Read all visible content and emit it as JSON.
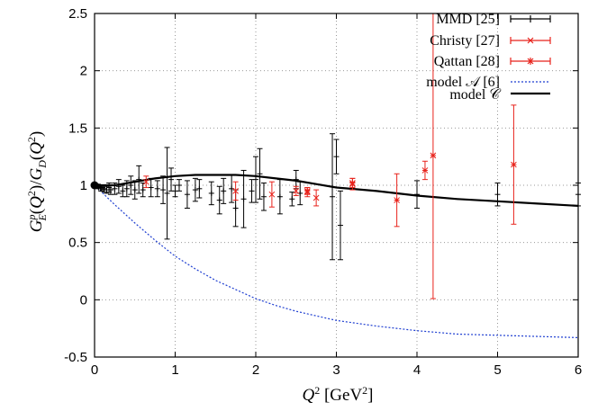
{
  "chart_data": {
    "type": "scatter",
    "xlabel": "Q² [GeV²]",
    "ylabel": "G_E^p(Q²)/G_D(Q²)",
    "xlim": [
      0,
      6
    ],
    "ylim": [
      -0.5,
      2.5
    ],
    "xticks": [
      "0",
      "1",
      "2",
      "3",
      "4",
      "5",
      "6"
    ],
    "yticks": [
      "-0.5",
      "0",
      "0.5",
      "1",
      "1.5",
      "2",
      "2.5"
    ],
    "xtick_values": [
      0,
      1,
      2,
      3,
      4,
      5,
      6
    ],
    "ytick_values": [
      -0.5,
      0,
      0.5,
      1,
      1.5,
      2,
      2.5
    ],
    "grid": true,
    "legend_position": "top-right",
    "colors": {
      "mmd": "#000000",
      "christy": "#e8221b",
      "qattan": "#e8221b",
      "modelA": "#1f3fd1",
      "modelC": "#000000"
    },
    "series": [
      {
        "name": "MMD [25]",
        "kind": "points",
        "marker": "plus",
        "points": [
          [
            0.01,
            1.0,
            0.01
          ],
          [
            0.02,
            0.99,
            0.01
          ],
          [
            0.03,
            1.0,
            0.01
          ],
          [
            0.04,
            0.99,
            0.01
          ],
          [
            0.05,
            0.98,
            0.01
          ],
          [
            0.07,
            0.99,
            0.01
          ],
          [
            0.08,
            0.97,
            0.02
          ],
          [
            0.1,
            0.98,
            0.02
          ],
          [
            0.12,
            0.97,
            0.03
          ],
          [
            0.15,
            0.96,
            0.03
          ],
          [
            0.18,
            0.98,
            0.04
          ],
          [
            0.2,
            0.96,
            0.04
          ],
          [
            0.25,
            0.97,
            0.05
          ],
          [
            0.3,
            0.99,
            0.06
          ],
          [
            0.35,
            0.95,
            0.05
          ],
          [
            0.4,
            0.97,
            0.07
          ],
          [
            0.45,
            1.0,
            0.08
          ],
          [
            0.5,
            0.96,
            0.08
          ],
          [
            0.55,
            1.05,
            0.12
          ],
          [
            0.6,
            0.96,
            0.06
          ],
          [
            0.7,
            0.98,
            0.08
          ],
          [
            0.78,
            0.97,
            0.07
          ],
          [
            0.85,
            0.96,
            0.12
          ],
          [
            0.9,
            0.93,
            0.4
          ],
          [
            0.95,
            1.05,
            0.1
          ],
          [
            1.0,
            0.95,
            0.05
          ],
          [
            1.05,
            1.0,
            0.05
          ],
          [
            1.15,
            0.92,
            0.12
          ],
          [
            1.25,
            0.96,
            0.1
          ],
          [
            1.3,
            0.97,
            0.08
          ],
          [
            1.45,
            0.93,
            0.1
          ],
          [
            1.55,
            0.87,
            0.12
          ],
          [
            1.6,
            0.95,
            0.11
          ],
          [
            1.7,
            0.97,
            0.12
          ],
          [
            1.75,
            0.8,
            0.16
          ],
          [
            1.85,
            0.88,
            0.25
          ],
          [
            1.95,
            0.95,
            0.1
          ],
          [
            2.0,
            1.05,
            0.2
          ],
          [
            2.05,
            1.1,
            0.22
          ],
          [
            2.1,
            0.9,
            0.12
          ],
          [
            2.3,
            0.9,
            0.15
          ],
          [
            2.45,
            0.88,
            0.06
          ],
          [
            2.5,
            1.05,
            0.08
          ],
          [
            2.55,
            0.93,
            0.1
          ],
          [
            2.95,
            0.9,
            0.55
          ],
          [
            3.0,
            1.25,
            0.15
          ],
          [
            3.05,
            0.65,
            0.3
          ],
          [
            4.0,
            0.92,
            0.12
          ],
          [
            5.0,
            0.92,
            0.1
          ],
          [
            6.0,
            0.92,
            0.1
          ]
        ]
      },
      {
        "name": "Christy [27]",
        "kind": "points",
        "marker": "cross",
        "points": [
          [
            0.64,
            1.03,
            0.05
          ],
          [
            1.75,
            0.95,
            0.08
          ],
          [
            2.2,
            0.92,
            0.11
          ],
          [
            2.5,
            0.95,
            0.04
          ],
          [
            2.64,
            0.94,
            0.04
          ],
          [
            2.75,
            0.89,
            0.07
          ],
          [
            3.2,
            1.01,
            0.05
          ]
        ]
      },
      {
        "name": "Qattan [28]",
        "kind": "points",
        "marker": "star",
        "points": [
          [
            2.64,
            0.95,
            0.03
          ],
          [
            3.2,
            1.02,
            0.04
          ],
          [
            3.75,
            0.87,
            0.23
          ],
          [
            4.1,
            1.13,
            0.08
          ],
          [
            4.2,
            1.26,
            1.25
          ],
          [
            5.2,
            1.18,
            0.52
          ]
        ]
      },
      {
        "name": "model 𝒜 [6]",
        "kind": "curve",
        "x": [
          0,
          0.25,
          0.5,
          0.75,
          1.0,
          1.25,
          1.5,
          1.75,
          2.0,
          2.25,
          2.5,
          2.75,
          3.0,
          3.5,
          4.0,
          4.5,
          5.0,
          5.5,
          6.0
        ],
        "values": [
          1.0,
          0.83,
          0.67,
          0.52,
          0.38,
          0.27,
          0.17,
          0.09,
          0.01,
          -0.05,
          -0.1,
          -0.14,
          -0.18,
          -0.23,
          -0.27,
          -0.3,
          -0.31,
          -0.32,
          -0.33
        ]
      },
      {
        "name": "model 𝒞",
        "kind": "curve",
        "x": [
          0,
          0.25,
          0.5,
          0.75,
          1.0,
          1.25,
          1.5,
          1.75,
          2.0,
          2.25,
          2.5,
          2.75,
          3.0,
          3.5,
          4.0,
          4.5,
          5.0,
          5.5,
          6.0
        ],
        "values": [
          1.0,
          1.0,
          1.03,
          1.06,
          1.08,
          1.09,
          1.09,
          1.09,
          1.08,
          1.06,
          1.04,
          1.01,
          0.98,
          0.95,
          0.91,
          0.88,
          0.86,
          0.84,
          0.82
        ]
      }
    ]
  }
}
